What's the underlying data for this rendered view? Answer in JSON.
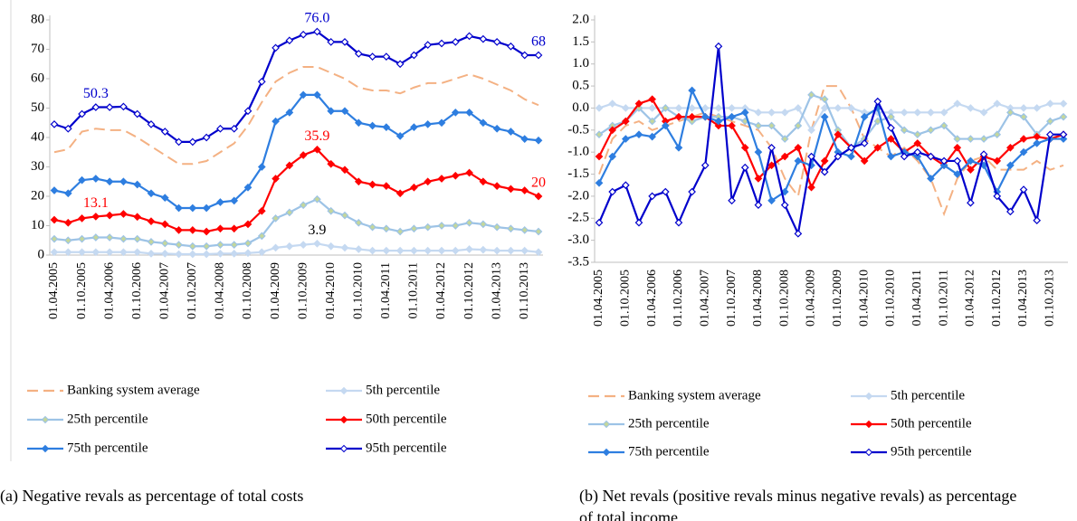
{
  "chart_data": [
    {
      "type": "line",
      "caption": "(a) Negative revals as percentage of total costs",
      "categories": [
        "01.04.2005",
        null,
        "01.10.2005",
        null,
        "01.04.2006",
        null,
        "01.10.2006",
        null,
        "01.04.2007",
        null,
        "01.10.2007",
        null,
        "01.04.2008",
        null,
        "01.10.2008",
        null,
        "01.04.2009",
        null,
        "01.10.2009",
        null,
        "01.04.2010",
        null,
        "01.10.2010",
        null,
        "01.04.2011",
        null,
        "01.10.2011",
        null,
        "01.04.2012",
        null,
        "01.10.2012",
        null,
        "01.04.2013",
        null,
        "01.10.2013",
        null
      ],
      "ylim": [
        0,
        80
      ],
      "yticks": [
        0,
        10,
        20,
        30,
        40,
        50,
        60,
        70,
        80
      ],
      "grid": false,
      "series": [
        {
          "name": "Banking system average",
          "color": "#f4b183",
          "dashed": true,
          "values": [
            35,
            36,
            42,
            43,
            42.5,
            42.5,
            40,
            37,
            34,
            31,
            31,
            32,
            35,
            38,
            44,
            52,
            59,
            62,
            64,
            64,
            62,
            60,
            57,
            56,
            56,
            55,
            57,
            58.5,
            58.5,
            60,
            61.5,
            60,
            58,
            56,
            53,
            51
          ]
        },
        {
          "name": "5th percentile",
          "color": "#c5d9f1",
          "label_color": "#000000",
          "values": [
            1,
            1,
            1,
            1,
            1,
            1,
            1,
            0.5,
            0.5,
            0.3,
            0.3,
            0.3,
            0.5,
            0.5,
            0.7,
            1,
            2.5,
            3,
            3.5,
            3.9,
            3,
            2.5,
            2,
            1.5,
            1.5,
            1.5,
            1.5,
            1.5,
            1.5,
            1.5,
            2,
            1.8,
            1.5,
            1.5,
            1.5,
            1
          ],
          "value_labels": [
            null,
            null,
            null,
            null,
            null,
            null,
            null,
            null,
            null,
            null,
            null,
            null,
            null,
            null,
            null,
            null,
            null,
            null,
            null,
            "3.9",
            null,
            null,
            null,
            null,
            null,
            null,
            null,
            null,
            null,
            null,
            null,
            null,
            null,
            null,
            null,
            null
          ]
        },
        {
          "name": "25th percentile",
          "color": "#9dc3e6",
          "marker_color": "#c4d79b",
          "values": [
            5.5,
            5,
            5.5,
            6,
            6,
            5.5,
            5.5,
            4.5,
            4,
            3.5,
            3,
            3,
            3.5,
            3.5,
            4,
            6.5,
            12.5,
            14.5,
            17,
            19,
            15,
            13.5,
            11,
            9.5,
            9,
            8,
            9,
            9.5,
            10,
            10,
            11,
            10.5,
            9.5,
            9,
            8.5,
            8
          ]
        },
        {
          "name": "50th percentile",
          "color": "#ff0000",
          "values": [
            12,
            11,
            12.5,
            13.1,
            13.5,
            14,
            13,
            11.5,
            10.5,
            8.5,
            8.5,
            8,
            9,
            9,
            10.5,
            15,
            26,
            30.5,
            34,
            35.9,
            31,
            29,
            25,
            24,
            23.5,
            21,
            23,
            25,
            26,
            27,
            28,
            25,
            23.5,
            22.5,
            22,
            20
          ],
          "value_labels": [
            null,
            null,
            null,
            "13.1",
            null,
            null,
            null,
            null,
            null,
            null,
            null,
            null,
            null,
            null,
            null,
            null,
            null,
            null,
            null,
            "35.9",
            null,
            null,
            null,
            null,
            null,
            null,
            null,
            null,
            null,
            null,
            null,
            null,
            null,
            null,
            null,
            "20"
          ]
        },
        {
          "name": "75th percentile",
          "color": "#2e7ee0",
          "values": [
            22,
            21,
            25.5,
            26,
            25,
            25,
            24,
            21,
            19.5,
            16,
            16,
            16,
            18,
            18.5,
            23,
            30,
            45.5,
            48.5,
            54.5,
            54.5,
            49,
            49,
            45,
            44,
            43.5,
            40.5,
            43.5,
            44.5,
            45,
            48.5,
            48.5,
            45,
            43,
            42,
            39.5,
            39
          ]
        },
        {
          "name": "95th percentile",
          "color": "#0000cc",
          "marker_color": "#ffffff",
          "values": [
            44.5,
            43,
            48,
            50.3,
            50.3,
            50.5,
            48,
            44.5,
            42,
            38.5,
            38.5,
            40,
            43,
            43,
            49,
            59,
            70.5,
            73,
            75,
            76,
            72.5,
            72.5,
            68.5,
            67.5,
            67.5,
            65,
            68,
            71.5,
            72,
            72.5,
            74.5,
            73.5,
            72.5,
            71,
            68,
            68
          ],
          "value_labels": [
            null,
            null,
            null,
            "50.3",
            null,
            null,
            null,
            null,
            null,
            null,
            null,
            null,
            null,
            null,
            null,
            null,
            null,
            null,
            null,
            "76.0",
            null,
            null,
            null,
            null,
            null,
            null,
            null,
            null,
            null,
            null,
            null,
            null,
            null,
            null,
            null,
            "68"
          ]
        }
      ]
    },
    {
      "type": "line",
      "caption": "(b) Net revals (positive revals minus negative revals) as percentage of total income",
      "categories": [
        "01.04.2005",
        null,
        "01.10.2005",
        null,
        "01.04.2006",
        null,
        "01.10.2006",
        null,
        "01.04.2007",
        null,
        "01.10.2007",
        null,
        "01.04.2008",
        null,
        "01.10.2008",
        null,
        "01.04.2009",
        null,
        "01.10.2009",
        null,
        "01.04.2010",
        null,
        "01.10.2010",
        null,
        "01.04.2011",
        null,
        "01.10.2011",
        null,
        "01.04.2012",
        null,
        "01.10.2012",
        null,
        "01.04.2013",
        null,
        "01.10.2013",
        null
      ],
      "ylim": [
        -3.5,
        2
      ],
      "grid": false,
      "yticks": [
        {
          "value": -3.5,
          "label": "-3.5"
        },
        {
          "value": -3,
          "label": "-3.0"
        },
        {
          "value": -2.5,
          "label": "-2.5"
        },
        {
          "value": -2,
          "label": "-2.0"
        },
        {
          "value": -1.5,
          "label": "-1.5"
        },
        {
          "value": -1,
          "label": "-1.0"
        },
        {
          "value": -0.5,
          "label": "-0.5"
        },
        {
          "value": 0,
          "label": "0.0"
        },
        {
          "value": 0.5,
          "label": "0.5"
        },
        {
          "value": 1,
          "label": "1.0"
        },
        {
          "value": 1.5,
          "label": "1.5"
        },
        {
          "value": 2,
          "label": "2.0"
        }
      ],
      "series": [
        {
          "name": "Banking system average",
          "color": "#f4b183",
          "dashed": true,
          "values": [
            -1.5,
            -0.7,
            -0.4,
            -0.3,
            -0.5,
            -0.4,
            -0.3,
            -0.2,
            -0.1,
            -0.2,
            -0.3,
            -0.4,
            -0.5,
            -0.9,
            -1.6,
            -2.0,
            -0.5,
            0.5,
            0.5,
            0.0,
            -0.7,
            -0.9,
            -1.1,
            -0.9,
            -1.2,
            -1.6,
            -2.4,
            -1.6,
            -1.2,
            -1.1,
            -1.4,
            -1.4,
            -1.4,
            -1.2,
            -1.4,
            -1.3
          ]
        },
        {
          "name": "5th percentile",
          "color": "#c5d9f1",
          "values": [
            0,
            0.1,
            0,
            0,
            0,
            0,
            0,
            0,
            0,
            0,
            0,
            0,
            -0.1,
            -0.1,
            -0.1,
            0,
            -0.5,
            0,
            0,
            0,
            -0.1,
            -0.1,
            -0.1,
            -0.1,
            -0.1,
            -0.1,
            -0.1,
            0.1,
            0,
            -0.1,
            0.1,
            0,
            0,
            0,
            0.1,
            0.1
          ]
        },
        {
          "name": "25th percentile",
          "color": "#9dc3e6",
          "marker_color": "#c4d79b",
          "values": [
            -0.6,
            -0.4,
            -0.3,
            0,
            -0.3,
            0,
            -0.2,
            -0.3,
            -0.2,
            -0.2,
            -0.2,
            -0.3,
            -0.4,
            -0.4,
            -0.7,
            -0.4,
            0.3,
            0.2,
            -0.5,
            -0.9,
            -0.7,
            -0.3,
            -0.2,
            -0.5,
            -0.6,
            -0.5,
            -0.4,
            -0.7,
            -0.7,
            -0.7,
            -0.6,
            -0.1,
            -0.2,
            -0.6,
            -0.3,
            -0.2
          ]
        },
        {
          "name": "50th percentile",
          "color": "#ff0000",
          "values": [
            -1.1,
            -0.5,
            -0.3,
            0.1,
            0.2,
            -0.3,
            -0.2,
            -0.2,
            -0.2,
            -0.4,
            -0.4,
            -0.9,
            -1.6,
            -1.3,
            -1.1,
            -0.9,
            -1.8,
            -1.2,
            -0.6,
            -0.9,
            -1.2,
            -0.9,
            -0.7,
            -1.0,
            -0.8,
            -1.1,
            -1.3,
            -0.9,
            -1.4,
            -1.1,
            -1.2,
            -0.9,
            -0.7,
            -0.65,
            -0.7,
            -0.6
          ]
        },
        {
          "name": "75th percentile",
          "color": "#2e7ee0",
          "values": [
            -1.7,
            -1.1,
            -0.7,
            -0.6,
            -0.65,
            -0.4,
            -0.9,
            0.4,
            -0.2,
            -0.3,
            -0.2,
            -0.1,
            -1.0,
            -2.1,
            -1.9,
            -1.2,
            -1.3,
            -0.2,
            -1.0,
            -1.1,
            -0.2,
            0.0,
            -1.1,
            -1.0,
            -1.1,
            -1.6,
            -1.3,
            -1.5,
            -1.2,
            -1.3,
            -1.9,
            -1.3,
            -1.0,
            -0.8,
            -0.7,
            -0.7
          ]
        },
        {
          "name": "95th percentile",
          "color": "#0000cc",
          "marker_color": "#ffffff",
          "values": [
            -2.6,
            -1.9,
            -1.75,
            -2.6,
            -2.0,
            -1.9,
            -2.6,
            -1.9,
            -1.3,
            1.4,
            -2.1,
            -1.35,
            -2.2,
            -0.9,
            -2.2,
            -2.85,
            -1.1,
            -1.45,
            -1.1,
            -0.9,
            -0.8,
            0.15,
            -0.45,
            -1.1,
            -1.0,
            -1.1,
            -1.2,
            -1.2,
            -2.15,
            -1.05,
            -2.0,
            -2.35,
            -1.85,
            -2.55,
            -0.6,
            -0.6
          ]
        }
      ]
    }
  ]
}
